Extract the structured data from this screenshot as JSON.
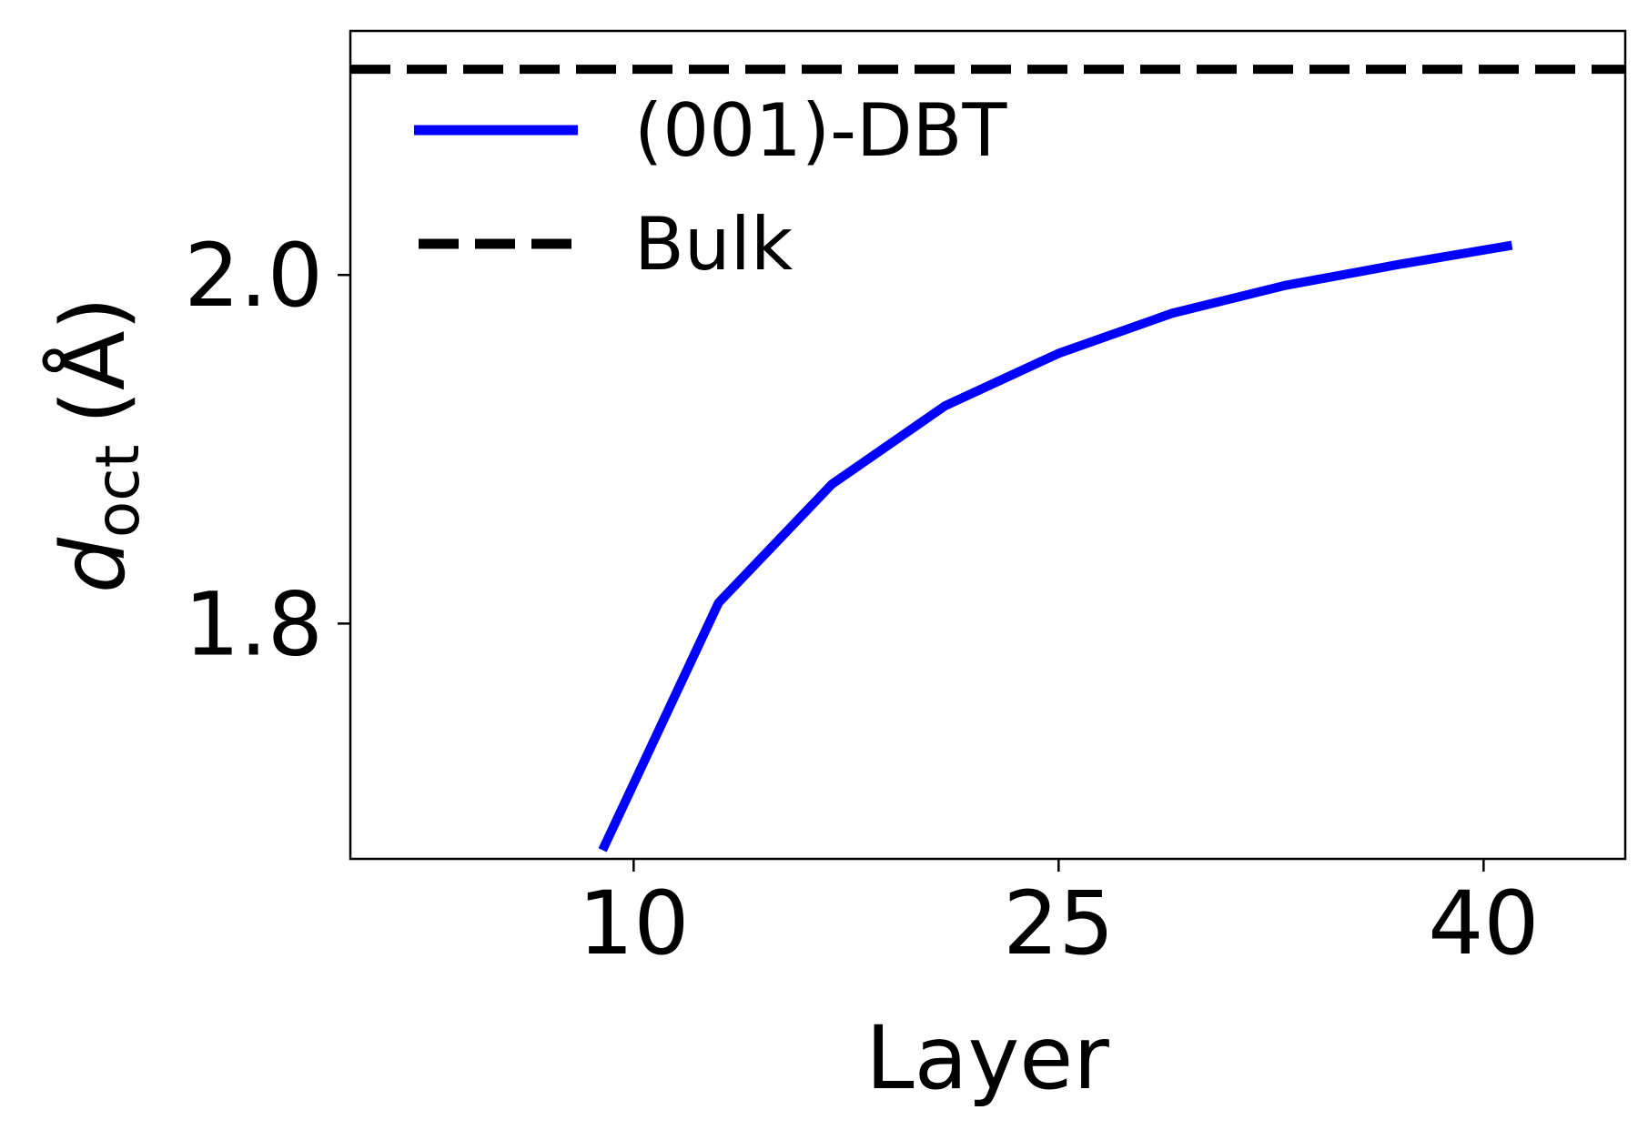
{
  "chart_data": {
    "type": "line",
    "xlabel": "Layer",
    "ylabel": {
      "main": "d",
      "subscript": "oct",
      "unit": "(Å)"
    },
    "xlim": [
      0,
      45
    ],
    "ylim": [
      1.665,
      2.14
    ],
    "xticks": [
      10,
      25,
      40
    ],
    "xtick_labels": [
      "10",
      "25",
      "40"
    ],
    "yticks": [
      1.8,
      2.0
    ],
    "ytick_labels": [
      "1.8",
      "2.0"
    ],
    "grid": false,
    "legend_position": "top-left",
    "series": [
      {
        "name": "(001)-DBT",
        "style": "solid",
        "color": "#0000ff",
        "x": [
          8.9,
          13,
          17,
          21,
          25,
          29,
          33,
          37,
          41
        ],
        "y": [
          1.67,
          1.812,
          1.88,
          1.925,
          1.955,
          1.978,
          1.994,
          2.006,
          2.017
        ]
      },
      {
        "name": "Bulk",
        "style": "dashed",
        "color": "#000000",
        "x": [
          0,
          45
        ],
        "y": [
          2.118,
          2.118
        ]
      }
    ]
  }
}
